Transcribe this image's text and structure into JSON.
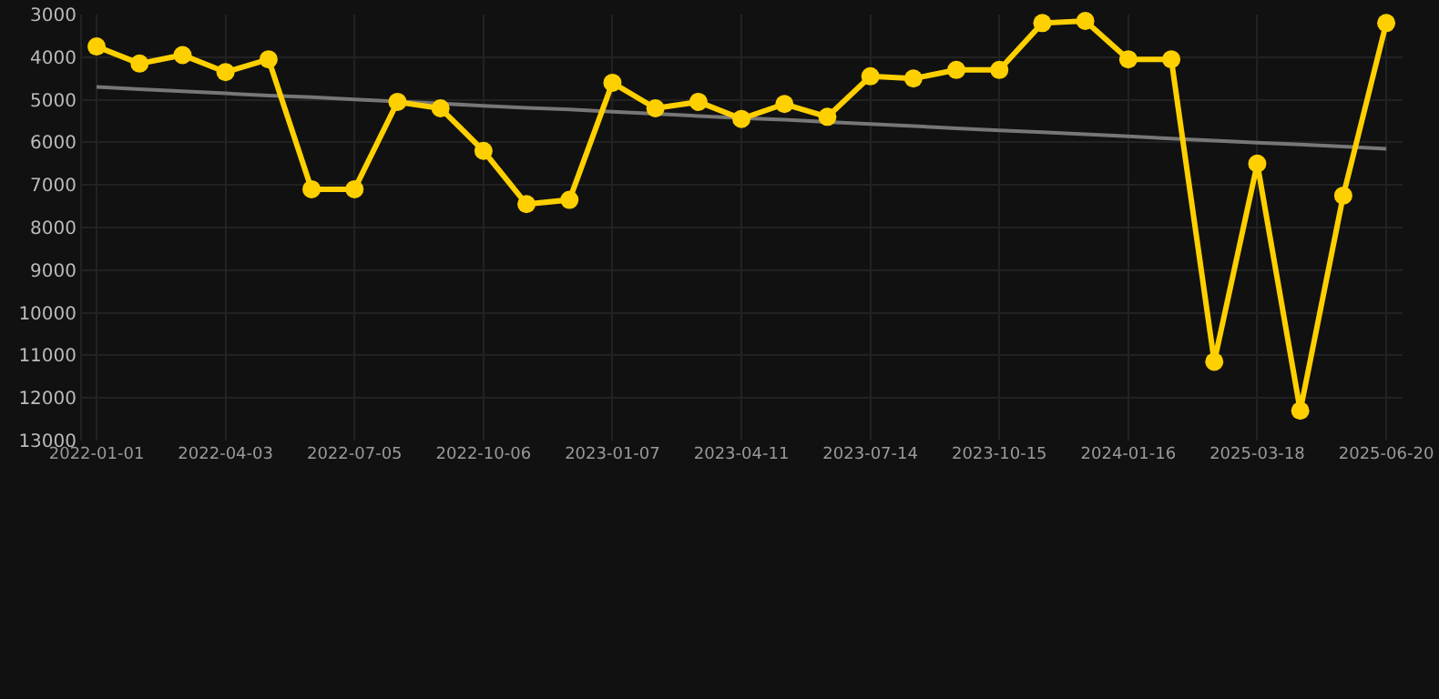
{
  "chart_data": {
    "type": "line",
    "categories": [
      "2022-01-01",
      null,
      null,
      "2022-04-03",
      null,
      null,
      "2022-07-05",
      null,
      null,
      "2022-10-06",
      null,
      null,
      "2023-01-07",
      null,
      null,
      "2023-04-11",
      null,
      null,
      "2023-07-14",
      null,
      null,
      "2023-10-15",
      null,
      null,
      "2024-01-16",
      null,
      null,
      "2025-03-18",
      null,
      null,
      "2025-06-20"
    ],
    "series": [
      {
        "color": "#ffd000",
        "marker": "circle",
        "values": [
          3750,
          4150,
          3950,
          4350,
          4050,
          7100,
          7100,
          5050,
          5200,
          6200,
          7450,
          7350,
          4600,
          5200,
          5050,
          5450,
          5100,
          5400,
          4450,
          4500,
          4300,
          4300,
          3200,
          3150,
          4050,
          4050,
          11150,
          6500,
          12300,
          7250,
          3200
        ]
      },
      {
        "color": "#777777",
        "marker": "none",
        "values": [
          4700,
          4750,
          4800,
          4850,
          4900,
          4940,
          4990,
          5040,
          5090,
          5140,
          5190,
          5230,
          5280,
          5330,
          5380,
          5430,
          5470,
          5520,
          5570,
          5620,
          5670,
          5720,
          5760,
          5810,
          5860,
          5910,
          5960,
          6010,
          6050,
          6100,
          6150
        ]
      }
    ],
    "ylim": [
      13000,
      3000
    ],
    "yticks": [
      3000,
      4000,
      5000,
      6000,
      7000,
      8000,
      9000,
      10000,
      11000,
      12000,
      13000
    ],
    "grid": true,
    "line_style": "solid"
  }
}
